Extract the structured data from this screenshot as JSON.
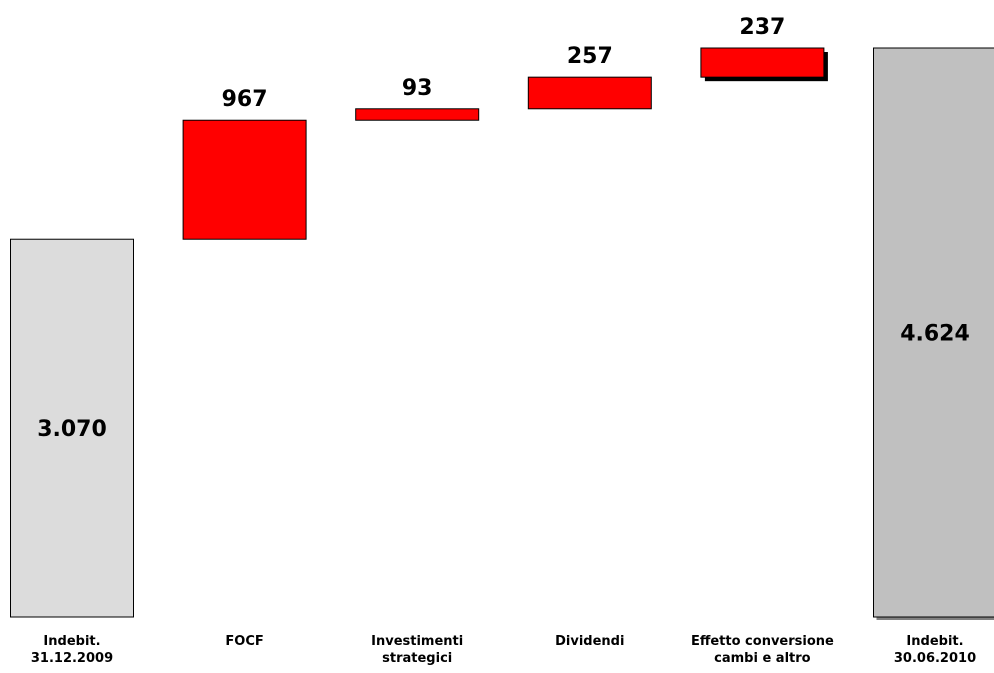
{
  "chart_data": {
    "type": "bar",
    "categories": [
      "Indebit.\n31.12.2009",
      "FOCF",
      "Investimenti\nstrategici",
      "Dividendi",
      "Effetto conversione\ncambi e altro",
      "Indebit.\n30.06.2010"
    ],
    "bars": [
      {
        "kind": "total",
        "start": 0,
        "end": 3070,
        "label": "3.070"
      },
      {
        "kind": "delta",
        "start": 3070,
        "end": 4037,
        "label": "967"
      },
      {
        "kind": "delta",
        "start": 4037,
        "end": 4130,
        "label": "93"
      },
      {
        "kind": "delta",
        "start": 4130,
        "end": 4387,
        "label": "257"
      },
      {
        "kind": "delta",
        "start": 4387,
        "end": 4624,
        "label": "237"
      },
      {
        "kind": "total",
        "start": 0,
        "end": 4624,
        "label": "4.624"
      }
    ],
    "values": [
      3070,
      967,
      93,
      257,
      237,
      4624
    ],
    "title": "",
    "xlabel": "",
    "ylabel": "",
    "ylim": [
      0,
      4624
    ],
    "grid": false,
    "colors": {
      "start_total": "#dcdcdc",
      "end_total": "#c0c0c0",
      "delta": "#ff0000",
      "shadow": "#000000",
      "outline": "#000000"
    }
  }
}
